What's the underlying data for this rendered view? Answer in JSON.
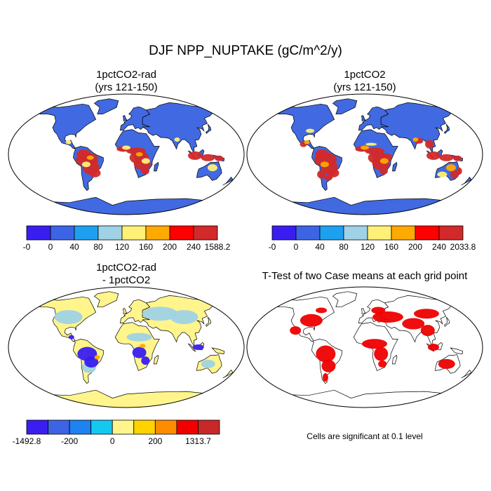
{
  "figure": {
    "title": "DJF NPP_NUPTAKE (gC/m^2/y)"
  },
  "panels": [
    {
      "id": "top-left",
      "title_line1": "1pctCO2-rad",
      "title_line2": "(yrs 121-150)",
      "kind": "field"
    },
    {
      "id": "top-right",
      "title_line1": "1pctCO2",
      "title_line2": "(yrs 121-150)",
      "kind": "field"
    },
    {
      "id": "bottom-left",
      "title_line1": "1pctCO2-rad",
      "title_line2": "- 1pctCO2",
      "kind": "difference"
    },
    {
      "id": "bottom-right",
      "title_line1": "T-Test of two Case means at each grid point",
      "title_line2": "",
      "kind": "significance",
      "note": "Cells are significant at 0.1 level",
      "significant_color": "#ee0000"
    }
  ],
  "colorbars": [
    {
      "id": "cbar-top-left",
      "colors": [
        "#3a1ef0",
        "#3c64e4",
        "#1ea0f0",
        "#a0d2e6",
        "#fff078",
        "#ffaa00",
        "#ff0000",
        "#d22a2a"
      ],
      "labels": [
        "-0",
        "0",
        "40",
        "80",
        "120",
        "160",
        "200",
        "240",
        "1588.2"
      ]
    },
    {
      "id": "cbar-top-right",
      "colors": [
        "#3a1ef0",
        "#3c64e4",
        "#1ea0f0",
        "#a0d2e6",
        "#fff078",
        "#ffaa00",
        "#ff0000",
        "#d22a2a"
      ],
      "labels": [
        "-0",
        "0",
        "40",
        "80",
        "120",
        "160",
        "200",
        "240",
        "2033.8"
      ]
    },
    {
      "id": "cbar-bottom-left",
      "colors": [
        "#3a1ef0",
        "#3c64e4",
        "#1e82f0",
        "#14c8f0",
        "#fff58c",
        "#ffd200",
        "#ff8c00",
        "#f00000",
        "#c82828"
      ],
      "labels": [
        "-1492.8",
        "",
        "-200",
        "",
        "0",
        "",
        "200",
        "",
        "1313.7"
      ]
    }
  ],
  "map_colors": {
    "ocean": "#ffffff",
    "coast": "#000000",
    "low_uptake": "#4169e1",
    "high_uptake": "#d22a2a",
    "mid_yellow": "#fff078",
    "mid_orange": "#ffaa00",
    "diff_neutral": "#fff58c",
    "diff_light_blue": "#a0d2e6",
    "diff_blue": "#3a1ef0"
  }
}
